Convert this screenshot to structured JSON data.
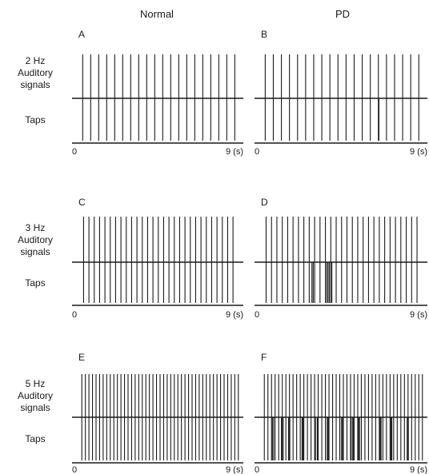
{
  "columns": [
    "Normal",
    "PD"
  ],
  "rows": [
    {
      "freq_label": "2 Hz",
      "line2": "Auditory",
      "line3": "signals",
      "taps_label": "Taps"
    },
    {
      "freq_label": "3 Hz",
      "line2": "Auditory",
      "line3": "signals",
      "taps_label": "Taps"
    },
    {
      "freq_label": "5 Hz",
      "line2": "Auditory",
      "line3": "signals",
      "taps_label": "Taps"
    }
  ],
  "chart_data": [
    {
      "panel": "A",
      "type": "event-raster",
      "group": "Normal",
      "signal_hz": 2,
      "xlim": [
        0,
        9
      ],
      "x_tick_labels": [
        "0",
        "9 (s)"
      ],
      "signals": [
        0.15,
        0.6,
        1.05,
        1.5,
        1.95,
        2.4,
        2.85,
        3.3,
        3.75,
        4.2,
        4.65,
        5.1,
        5.55,
        6.0,
        6.45,
        6.9,
        7.35,
        7.8,
        8.25,
        8.7
      ],
      "taps": [
        0.15,
        0.6,
        1.05,
        1.5,
        1.95,
        2.4,
        2.85,
        3.3,
        3.75,
        4.2,
        4.65,
        5.1,
        5.55,
        6.0,
        6.45,
        6.9,
        7.35,
        7.8,
        8.25,
        8.7
      ]
    },
    {
      "panel": "B",
      "type": "event-raster",
      "group": "PD",
      "signal_hz": 2,
      "xlim": [
        0,
        9
      ],
      "x_tick_labels": [
        "0",
        "9 (s)"
      ],
      "signals": [
        0.15,
        0.6,
        1.05,
        1.5,
        1.95,
        2.4,
        2.85,
        3.3,
        3.75,
        4.2,
        4.65,
        5.1,
        5.55,
        6.0,
        6.45,
        6.9,
        7.35,
        7.8,
        8.25,
        8.7
      ],
      "taps": [
        0.15,
        0.6,
        1.05,
        1.5,
        1.95,
        2.4,
        2.85,
        3.3,
        3.75,
        4.2,
        4.65,
        5.1,
        5.55,
        6.0,
        6.45,
        6.48,
        6.9,
        7.35,
        7.8,
        8.25,
        8.7
      ]
    },
    {
      "panel": "C",
      "type": "event-raster",
      "group": "Normal",
      "signal_hz": 3,
      "xlim": [
        0,
        9
      ],
      "x_tick_labels": [
        "0",
        "9 (s)"
      ],
      "signals": [
        0.2,
        0.5,
        0.8,
        1.1,
        1.4,
        1.7,
        2.0,
        2.3,
        2.6,
        2.9,
        3.2,
        3.5,
        3.8,
        4.1,
        4.4,
        4.7,
        5.0,
        5.3,
        5.6,
        5.9,
        6.2,
        6.5,
        6.8,
        7.1,
        7.4,
        7.7,
        8.0,
        8.3,
        8.6
      ],
      "taps": [
        0.2,
        0.5,
        0.8,
        1.1,
        1.4,
        1.7,
        2.0,
        2.3,
        2.6,
        2.9,
        3.2,
        3.5,
        3.8,
        4.1,
        4.4,
        4.7,
        5.0,
        5.3,
        5.6,
        5.9,
        6.2,
        6.5,
        6.8,
        7.1,
        7.4,
        7.7,
        8.0,
        8.3,
        8.6
      ]
    },
    {
      "panel": "D",
      "type": "event-raster",
      "group": "PD",
      "signal_hz": 3,
      "xlim": [
        0,
        9
      ],
      "x_tick_labels": [
        "0",
        "9 (s)"
      ],
      "signals": [
        0.2,
        0.5,
        0.8,
        1.1,
        1.4,
        1.7,
        2.0,
        2.3,
        2.6,
        2.9,
        3.2,
        3.5,
        3.8,
        4.1,
        4.4,
        4.7,
        5.0,
        5.3,
        5.6,
        5.9,
        6.2,
        6.5,
        6.8,
        7.1,
        7.4,
        7.7,
        8.0,
        8.3,
        8.6
      ],
      "taps": [
        0.2,
        0.5,
        0.8,
        1.1,
        1.4,
        1.7,
        2.0,
        2.3,
        2.6,
        2.75,
        2.82,
        2.9,
        3.2,
        3.5,
        3.58,
        3.65,
        3.72,
        3.8,
        3.86,
        4.1,
        4.4,
        4.7,
        5.0,
        5.3,
        5.6,
        5.9,
        6.2,
        6.5,
        6.8,
        7.1,
        7.4,
        7.7,
        8.0,
        8.3,
        8.6
      ]
    },
    {
      "panel": "E",
      "type": "event-raster",
      "group": "Normal",
      "signal_hz": 5,
      "xlim": [
        0,
        9
      ],
      "x_tick_labels": [
        "0",
        "9 (s)"
      ],
      "signals": [
        0.1,
        0.3,
        0.5,
        0.7,
        0.9,
        1.1,
        1.3,
        1.5,
        1.7,
        1.9,
        2.1,
        2.3,
        2.5,
        2.7,
        2.9,
        3.1,
        3.3,
        3.5,
        3.7,
        3.9,
        4.1,
        4.3,
        4.5,
        4.7,
        4.9,
        5.1,
        5.3,
        5.5,
        5.7,
        5.9,
        6.1,
        6.3,
        6.5,
        6.7,
        6.9,
        7.1,
        7.3,
        7.5,
        7.7,
        7.9,
        8.1,
        8.3,
        8.5,
        8.7,
        8.9
      ],
      "taps": [
        0.1,
        0.3,
        0.5,
        0.7,
        0.9,
        1.1,
        1.3,
        1.5,
        1.7,
        1.9,
        2.1,
        2.3,
        2.5,
        2.7,
        2.9,
        3.1,
        3.3,
        3.5,
        3.7,
        3.9,
        4.1,
        4.3,
        4.5,
        4.7,
        4.9,
        5.1,
        5.3,
        5.5,
        5.7,
        5.9,
        6.1,
        6.3,
        6.5,
        6.7,
        6.9,
        7.1,
        7.3,
        7.5,
        7.7,
        7.9,
        8.1,
        8.3,
        8.5,
        8.7,
        8.9
      ]
    },
    {
      "panel": "F",
      "type": "event-raster",
      "group": "PD",
      "signal_hz": 5,
      "xlim": [
        0,
        9
      ],
      "x_tick_labels": [
        "0",
        "9 (s)"
      ],
      "signals": [
        0.1,
        0.3,
        0.5,
        0.7,
        0.9,
        1.1,
        1.3,
        1.5,
        1.7,
        1.9,
        2.1,
        2.3,
        2.5,
        2.7,
        2.9,
        3.1,
        3.3,
        3.5,
        3.7,
        3.9,
        4.1,
        4.3,
        4.5,
        4.7,
        4.9,
        5.1,
        5.3,
        5.5,
        5.7,
        5.9,
        6.1,
        6.3,
        6.5,
        6.7,
        6.9,
        7.1,
        7.3,
        7.5,
        7.7,
        7.9,
        8.1,
        8.3,
        8.5,
        8.7,
        8.9
      ],
      "taps": [
        0.1,
        0.3,
        0.5,
        0.7,
        0.9,
        1.1,
        1.3,
        1.5,
        1.7,
        1.9,
        2.1,
        2.3,
        2.5,
        2.7,
        2.9,
        3.1,
        3.3,
        3.5,
        3.7,
        3.9,
        4.1,
        4.3,
        4.5,
        4.7,
        4.9,
        5.1,
        5.3,
        5.5,
        5.7,
        5.9,
        6.1,
        6.3,
        6.5,
        6.7,
        6.9,
        7.1,
        7.3,
        7.5,
        7.7,
        7.9,
        8.1,
        8.3,
        8.5,
        8.7,
        8.9,
        0.55,
        0.62,
        1.05,
        1.15,
        1.45,
        1.52,
        2.2,
        2.25,
        2.95,
        3.05,
        3.6,
        3.65,
        4.3,
        4.4,
        4.45,
        4.92,
        5.0,
        5.05,
        5.35,
        5.4,
        6.55,
        6.6,
        7.15,
        7.2,
        8.05,
        8.12
      ]
    }
  ]
}
